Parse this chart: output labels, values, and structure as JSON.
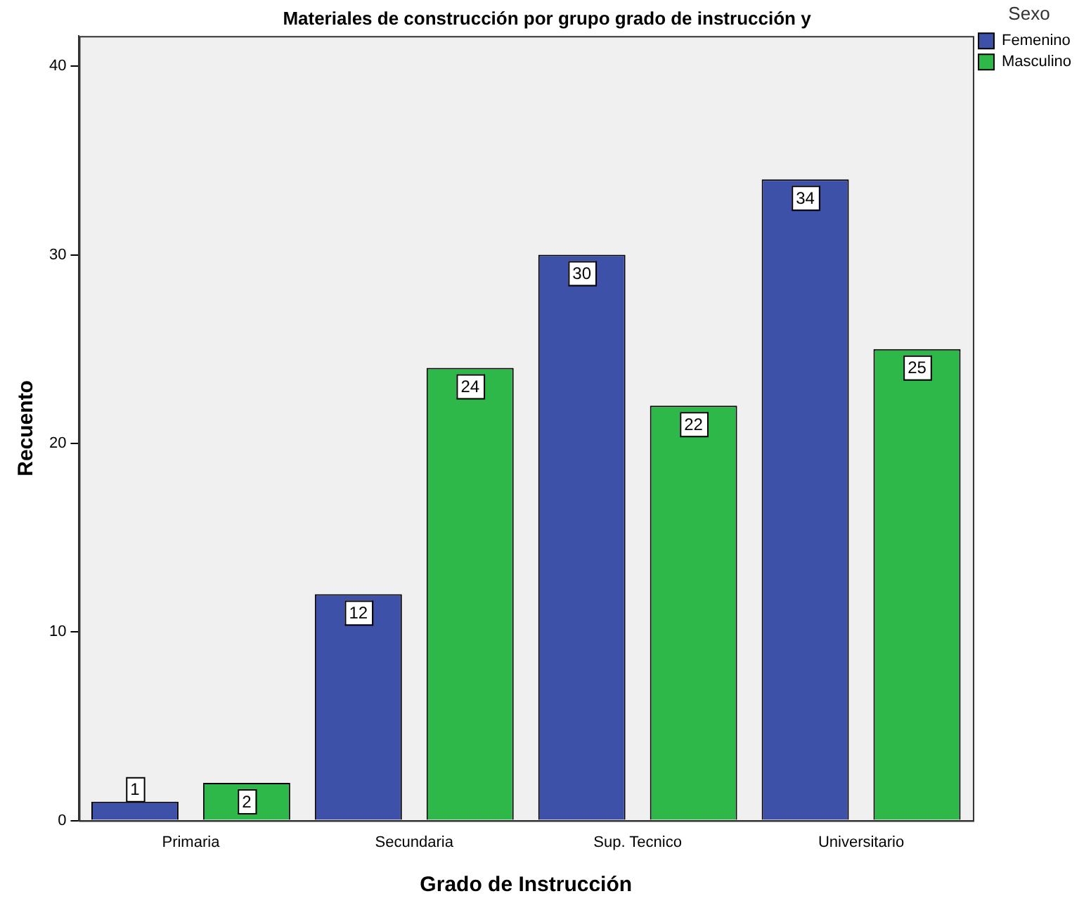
{
  "chart_data": {
    "type": "bar",
    "title": "Materiales de construcción por grupo grado de instrucción y",
    "xlabel": "Grado de Instrucción",
    "ylabel": "Recuento",
    "legend_title": "Sexo",
    "legend": "top right",
    "categories": [
      "Primaria",
      "Secundaria",
      "Sup. Tecnico",
      "Universitario"
    ],
    "series": [
      {
        "name": "Femenino",
        "color": "#3e51a8",
        "values": [
          1,
          12,
          30,
          34
        ]
      },
      {
        "name": "Masculino",
        "color": "#2fb84a",
        "values": [
          2,
          24,
          22,
          25
        ]
      }
    ],
    "ylim": [
      0,
      41.6
    ],
    "yticks": [
      0,
      10,
      20,
      30,
      40
    ],
    "grid": false,
    "data_labels": true
  }
}
